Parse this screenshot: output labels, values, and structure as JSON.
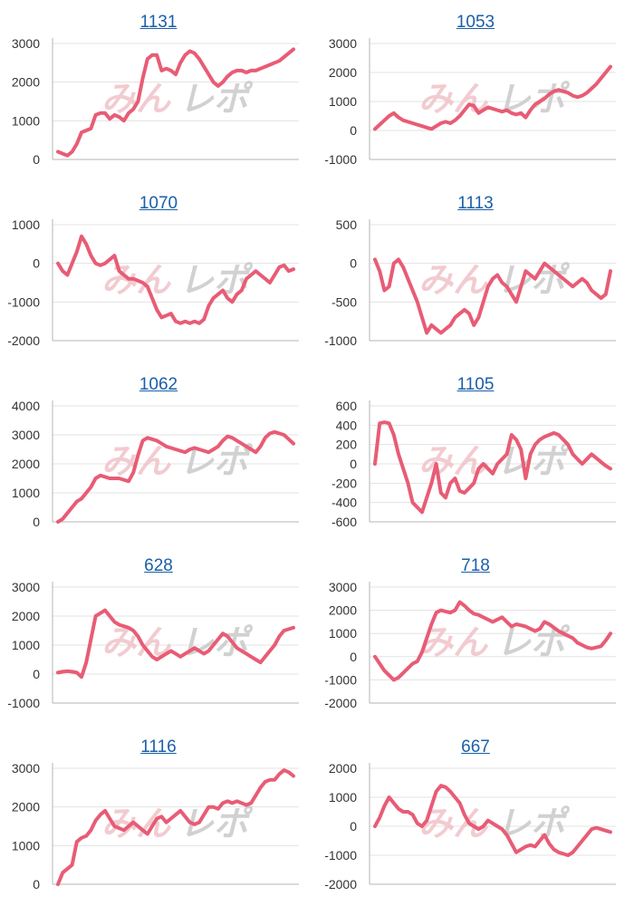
{
  "colors": {
    "line": "#e85c75",
    "grid": "#e3e3e3",
    "axis": "#b5b5b5",
    "title": "#1a5fa8",
    "watermark_pink": "#f0c2c8",
    "watermark_gray": "#c9c9c9"
  },
  "watermark": {
    "left": "みん",
    "right": "レポ"
  },
  "chart_data": [
    {
      "type": "line",
      "title": "1131",
      "yticks": [
        "0",
        "1000",
        "2000",
        "3000"
      ],
      "ylim": [
        0,
        3000
      ],
      "x": [
        0,
        2,
        4,
        6,
        8,
        10,
        12,
        14,
        16,
        18,
        20,
        22,
        24,
        26,
        28,
        30,
        32,
        34,
        36,
        38,
        40,
        42,
        44,
        46,
        48,
        50,
        52,
        54,
        56,
        58,
        60,
        62,
        64,
        66,
        68,
        70,
        72,
        74,
        76,
        78,
        80,
        82,
        84,
        86,
        88,
        90,
        92,
        94,
        96,
        98,
        100
      ],
      "values": [
        200,
        150,
        100,
        200,
        400,
        700,
        750,
        800,
        1150,
        1200,
        1200,
        1050,
        1150,
        1100,
        1000,
        1200,
        1300,
        1500,
        2100,
        2600,
        2700,
        2700,
        2300,
        2350,
        2300,
        2200,
        2500,
        2700,
        2800,
        2750,
        2600,
        2400,
        2200,
        2000,
        1900,
        2000,
        2150,
        2250,
        2300,
        2300,
        2250,
        2300,
        2300,
        2350,
        2400,
        2450,
        2500,
        2550,
        2650,
        2750,
        2850
      ]
    },
    {
      "type": "line",
      "title": "1053",
      "yticks": [
        "-1000",
        "0",
        "1000",
        "2000",
        "3000"
      ],
      "ylim": [
        -1000,
        3000
      ],
      "x": [
        0,
        2,
        4,
        6,
        8,
        10,
        12,
        14,
        16,
        18,
        20,
        22,
        24,
        26,
        28,
        30,
        32,
        34,
        36,
        38,
        40,
        42,
        44,
        46,
        48,
        50,
        52,
        54,
        56,
        58,
        60,
        62,
        64,
        66,
        68,
        70,
        72,
        74,
        76,
        78,
        80,
        82,
        84,
        86,
        88,
        90,
        92,
        94,
        96,
        98,
        100
      ],
      "values": [
        50,
        200,
        350,
        500,
        600,
        450,
        350,
        300,
        250,
        200,
        150,
        100,
        50,
        150,
        250,
        300,
        250,
        350,
        500,
        700,
        900,
        850,
        600,
        700,
        800,
        750,
        700,
        650,
        700,
        600,
        550,
        600,
        450,
        700,
        900,
        1000,
        1100,
        1250,
        1350,
        1400,
        1350,
        1300,
        1200,
        1150,
        1200,
        1300,
        1450,
        1600,
        1800,
        2000,
        2200
      ]
    },
    {
      "type": "line",
      "title": "1070",
      "yticks": [
        "-2000",
        "-1000",
        "0",
        "1000"
      ],
      "ylim": [
        -2000,
        1000
      ],
      "x": [
        0,
        2,
        4,
        6,
        8,
        10,
        12,
        14,
        16,
        18,
        20,
        22,
        24,
        26,
        28,
        30,
        32,
        34,
        36,
        38,
        40,
        42,
        44,
        46,
        48,
        50,
        52,
        54,
        56,
        58,
        60,
        62,
        64,
        66,
        68,
        70,
        72,
        74,
        76,
        78,
        80,
        82,
        84,
        86,
        88,
        90,
        92,
        94,
        96,
        98,
        100
      ],
      "values": [
        0,
        -200,
        -300,
        0,
        300,
        700,
        500,
        200,
        0,
        -50,
        0,
        100,
        200,
        -200,
        -300,
        -400,
        -400,
        -450,
        -500,
        -600,
        -900,
        -1200,
        -1400,
        -1350,
        -1300,
        -1500,
        -1550,
        -1500,
        -1550,
        -1500,
        -1550,
        -1450,
        -1100,
        -900,
        -800,
        -700,
        -900,
        -1000,
        -800,
        -700,
        -400,
        -300,
        -200,
        -300,
        -400,
        -500,
        -300,
        -100,
        -50,
        -200,
        -150
      ]
    },
    {
      "type": "line",
      "title": "1113",
      "yticks": [
        "-1000",
        "-500",
        "0",
        "500"
      ],
      "ylim": [
        -1000,
        500
      ],
      "x": [
        0,
        2,
        4,
        6,
        8,
        10,
        12,
        14,
        16,
        18,
        20,
        22,
        24,
        26,
        28,
        30,
        32,
        34,
        36,
        38,
        40,
        42,
        44,
        46,
        48,
        50,
        52,
        54,
        56,
        58,
        60,
        62,
        64,
        66,
        68,
        70,
        72,
        74,
        76,
        78,
        80,
        82,
        84,
        86,
        88,
        90,
        92,
        94,
        96,
        98,
        100
      ],
      "values": [
        50,
        -100,
        -350,
        -300,
        0,
        50,
        -50,
        -200,
        -350,
        -500,
        -700,
        -900,
        -800,
        -850,
        -900,
        -850,
        -800,
        -700,
        -650,
        -600,
        -650,
        -800,
        -700,
        -500,
        -300,
        -200,
        -150,
        -250,
        -300,
        -400,
        -500,
        -300,
        -100,
        -150,
        -200,
        -100,
        0,
        -50,
        -100,
        -150,
        -200,
        -250,
        -300,
        -250,
        -200,
        -250,
        -350,
        -400,
        -450,
        -400,
        -100
      ]
    },
    {
      "type": "line",
      "title": "1062",
      "yticks": [
        "0",
        "1000",
        "2000",
        "3000",
        "4000"
      ],
      "ylim": [
        0,
        4000
      ],
      "x": [
        0,
        2,
        4,
        6,
        8,
        10,
        12,
        14,
        16,
        18,
        20,
        22,
        24,
        26,
        28,
        30,
        32,
        34,
        36,
        38,
        40,
        42,
        44,
        46,
        48,
        50,
        52,
        54,
        56,
        58,
        60,
        62,
        64,
        66,
        68,
        70,
        72,
        74,
        76,
        78,
        80,
        82,
        84,
        86,
        88,
        90,
        92,
        94,
        96,
        98,
        100
      ],
      "values": [
        0,
        100,
        300,
        500,
        700,
        800,
        1000,
        1200,
        1500,
        1600,
        1550,
        1500,
        1500,
        1500,
        1450,
        1400,
        1700,
        2300,
        2800,
        2900,
        2850,
        2800,
        2700,
        2600,
        2550,
        2500,
        2450,
        2400,
        2500,
        2550,
        2500,
        2450,
        2400,
        2500,
        2600,
        2800,
        2950,
        2900,
        2800,
        2700,
        2600,
        2500,
        2400,
        2600,
        2900,
        3050,
        3100,
        3050,
        3000,
        2850,
        2700
      ]
    },
    {
      "type": "line",
      "title": "1105",
      "yticks": [
        "-600",
        "-400",
        "-200",
        "0",
        "200",
        "400",
        "600"
      ],
      "ylim": [
        -600,
        600
      ],
      "x": [
        0,
        2,
        4,
        6,
        8,
        10,
        12,
        14,
        16,
        18,
        20,
        22,
        24,
        26,
        28,
        30,
        32,
        34,
        36,
        38,
        40,
        42,
        44,
        46,
        48,
        50,
        52,
        54,
        56,
        58,
        60,
        62,
        64,
        66,
        68,
        70,
        72,
        74,
        76,
        78,
        80,
        82,
        84,
        86,
        88,
        90,
        92,
        94,
        96,
        98,
        100
      ],
      "values": [
        0,
        420,
        430,
        420,
        300,
        100,
        -50,
        -200,
        -400,
        -450,
        -500,
        -350,
        -200,
        0,
        -300,
        -350,
        -200,
        -150,
        -280,
        -300,
        -250,
        -200,
        -50,
        0,
        -50,
        -100,
        0,
        50,
        100,
        300,
        250,
        150,
        -150,
        100,
        200,
        250,
        280,
        300,
        320,
        300,
        250,
        200,
        100,
        50,
        0,
        50,
        100,
        60,
        20,
        -20,
        -50
      ]
    },
    {
      "type": "line",
      "title": "628",
      "yticks": [
        "-1000",
        "0",
        "1000",
        "2000",
        "3000"
      ],
      "ylim": [
        -1000,
        3000
      ],
      "x": [
        0,
        2,
        4,
        6,
        8,
        10,
        12,
        14,
        16,
        18,
        20,
        22,
        24,
        26,
        28,
        30,
        32,
        34,
        36,
        38,
        40,
        42,
        44,
        46,
        48,
        50,
        52,
        54,
        56,
        58,
        60,
        62,
        64,
        66,
        68,
        70,
        72,
        74,
        76,
        78,
        80,
        82,
        84,
        86,
        88,
        90,
        92,
        94,
        96,
        98,
        100
      ],
      "values": [
        50,
        80,
        100,
        80,
        50,
        -100,
        400,
        1200,
        2000,
        2100,
        2200,
        2000,
        1800,
        1700,
        1650,
        1600,
        1500,
        1300,
        1000,
        800,
        600,
        500,
        600,
        700,
        800,
        700,
        600,
        700,
        800,
        900,
        800,
        700,
        800,
        1000,
        1200,
        1400,
        1300,
        1100,
        900,
        800,
        700,
        600,
        500,
        400,
        600,
        800,
        1000,
        1300,
        1500,
        1550,
        1600
      ]
    },
    {
      "type": "line",
      "title": "718",
      "yticks": [
        "-2000",
        "-1000",
        "0",
        "1000",
        "2000",
        "3000"
      ],
      "ylim": [
        -2000,
        3000
      ],
      "x": [
        0,
        2,
        4,
        6,
        8,
        10,
        12,
        14,
        16,
        18,
        20,
        22,
        24,
        26,
        28,
        30,
        32,
        34,
        36,
        38,
        40,
        42,
        44,
        46,
        48,
        50,
        52,
        54,
        56,
        58,
        60,
        62,
        64,
        66,
        68,
        70,
        72,
        74,
        76,
        78,
        80,
        82,
        84,
        86,
        88,
        90,
        92,
        94,
        96,
        98,
        100
      ],
      "values": [
        0,
        -300,
        -600,
        -800,
        -1000,
        -900,
        -700,
        -500,
        -300,
        -200,
        200,
        800,
        1400,
        1900,
        2000,
        1950,
        1900,
        2000,
        2350,
        2200,
        2000,
        1850,
        1800,
        1700,
        1600,
        1500,
        1600,
        1700,
        1500,
        1300,
        1400,
        1350,
        1300,
        1200,
        1100,
        1200,
        1500,
        1400,
        1250,
        1100,
        1000,
        900,
        800,
        600,
        500,
        400,
        350,
        400,
        450,
        700,
        1000
      ]
    },
    {
      "type": "line",
      "title": "1116",
      "yticks": [
        "0",
        "1000",
        "2000",
        "3000"
      ],
      "ylim": [
        0,
        3000
      ],
      "x": [
        0,
        2,
        4,
        6,
        8,
        10,
        12,
        14,
        16,
        18,
        20,
        22,
        24,
        26,
        28,
        30,
        32,
        34,
        36,
        38,
        40,
        42,
        44,
        46,
        48,
        50,
        52,
        54,
        56,
        58,
        60,
        62,
        64,
        66,
        68,
        70,
        72,
        74,
        76,
        78,
        80,
        82,
        84,
        86,
        88,
        90,
        92,
        94,
        96,
        98,
        100
      ],
      "values": [
        0,
        300,
        400,
        500,
        1100,
        1200,
        1250,
        1400,
        1650,
        1800,
        1900,
        1700,
        1500,
        1450,
        1400,
        1500,
        1600,
        1500,
        1400,
        1300,
        1500,
        1700,
        1750,
        1600,
        1700,
        1800,
        1900,
        1750,
        1600,
        1550,
        1600,
        1800,
        2000,
        2000,
        1950,
        2100,
        2150,
        2100,
        2150,
        2100,
        2050,
        2100,
        2300,
        2500,
        2650,
        2700,
        2700,
        2850,
        2950,
        2900,
        2800
      ]
    },
    {
      "type": "line",
      "title": "667",
      "yticks": [
        "-2000",
        "-1000",
        "0",
        "1000",
        "2000"
      ],
      "ylim": [
        -2000,
        2000
      ],
      "x": [
        0,
        2,
        4,
        6,
        8,
        10,
        12,
        14,
        16,
        18,
        20,
        22,
        24,
        26,
        28,
        30,
        32,
        34,
        36,
        38,
        40,
        42,
        44,
        46,
        48,
        50,
        52,
        54,
        56,
        58,
        60,
        62,
        64,
        66,
        68,
        70,
        72,
        74,
        76,
        78,
        80,
        82,
        84,
        86,
        88,
        90,
        92,
        94,
        96,
        98,
        100
      ],
      "values": [
        0,
        300,
        700,
        1000,
        800,
        600,
        500,
        500,
        400,
        100,
        0,
        200,
        700,
        1200,
        1400,
        1350,
        1200,
        1000,
        800,
        400,
        100,
        0,
        -100,
        0,
        200,
        100,
        0,
        -100,
        -300,
        -600,
        -900,
        -800,
        -700,
        -650,
        -700,
        -500,
        -300,
        -600,
        -800,
        -900,
        -950,
        -1000,
        -900,
        -700,
        -500,
        -300,
        -100,
        -50,
        -100,
        -150,
        -200
      ]
    }
  ]
}
